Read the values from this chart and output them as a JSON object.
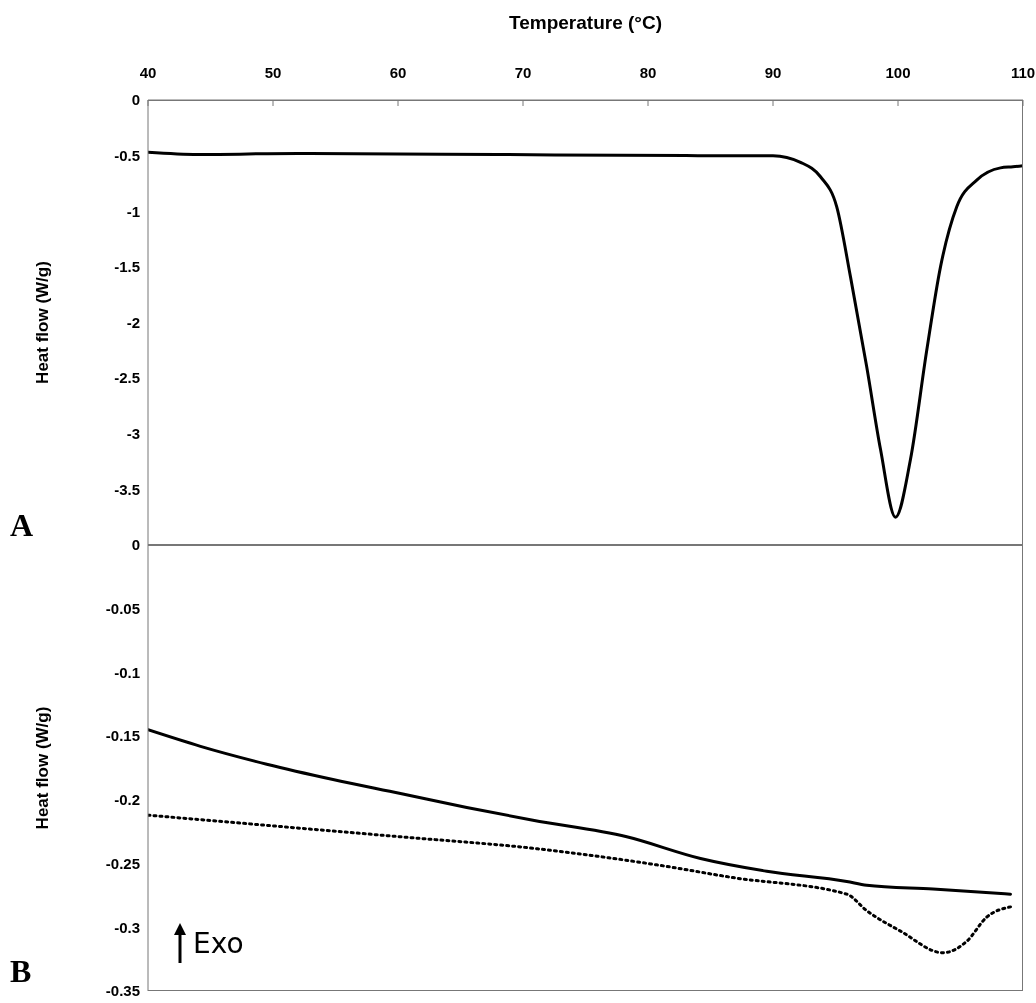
{
  "chart_data": [
    {
      "type": "line",
      "xlabel": "Temperature (°C)",
      "ylabel": "Heat flow (W/g)",
      "xlim": [
        40,
        110
      ],
      "xticks": [
        40,
        50,
        60,
        70,
        80,
        90,
        100,
        110
      ],
      "ylim": [
        -4,
        0
      ],
      "yticks": [
        0,
        -0.5,
        -1,
        -1.5,
        -2,
        -2.5,
        -3,
        -3.5
      ],
      "marker": "none",
      "annotations": [
        "A"
      ],
      "series": [
        {
          "color": "#000000",
          "line_style": "solid",
          "x": [
            40,
            44,
            52,
            68,
            84,
            90,
            92.2,
            93.8,
            95.1,
            96.2,
            97.5,
            98.6,
            99.8,
            101.0,
            102.3,
            103.4,
            104.7,
            106.3,
            108.2,
            109.2,
            110
          ],
          "values": [
            -0.47,
            -0.49,
            -0.48,
            -0.49,
            -0.5,
            -0.5,
            -0.56,
            -0.69,
            -0.96,
            -1.59,
            -2.4,
            -3.14,
            -3.75,
            -3.23,
            -2.25,
            -1.5,
            -0.96,
            -0.72,
            -0.61,
            -0.6,
            -0.59
          ]
        }
      ]
    },
    {
      "type": "line",
      "ylabel": "Heat flow (W/g)",
      "xlim": [
        40,
        110
      ],
      "ylim": [
        -0.35,
        0
      ],
      "yticks": [
        0,
        -0.05,
        -0.1,
        -0.15,
        -0.2,
        -0.25,
        -0.3,
        -0.35
      ],
      "tick_labels": "y",
      "marker": "none",
      "annotations": [
        "B",
        "Exo"
      ],
      "series": [
        {
          "color": "#000000",
          "line_style": "solid",
          "x": [
            40,
            44.2,
            49.5,
            54.8,
            60.2,
            65.5,
            70.8,
            78.3,
            84.2,
            89.5,
            95.9,
            97.5,
            102.8,
            109
          ],
          "values": [
            -0.145,
            -0.158,
            -0.172,
            -0.184,
            -0.195,
            -0.206,
            -0.216,
            -0.229,
            -0.246,
            -0.256,
            -0.264,
            -0.267,
            -0.27,
            -0.274
          ]
        },
        {
          "color": "#000000",
          "line_style": "dotted",
          "x": [
            40,
            49.5,
            60.2,
            70.8,
            80.7,
            86.8,
            95.9,
            97.5,
            100.2,
            103.6,
            105.5,
            107.1,
            109
          ],
          "values": [
            -0.212,
            -0.22,
            -0.229,
            -0.238,
            -0.251,
            -0.261,
            -0.274,
            -0.287,
            -0.303,
            -0.32,
            -0.311,
            -0.292,
            -0.284
          ]
        }
      ]
    }
  ]
}
